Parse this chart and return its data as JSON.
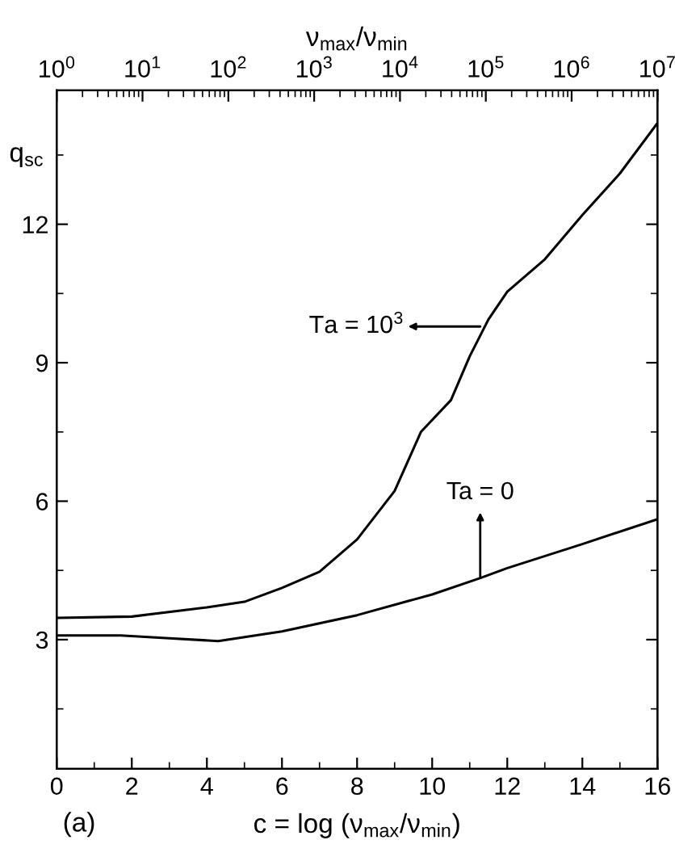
{
  "chart_data": {
    "type": "line",
    "xlabel": "c = log (ν$_{max}$/ν$_{min}$)",
    "ylabel": "q$_{sc}$",
    "x2label": "ν$_{max}$/ν$_{min}$",
    "series": [
      {
        "color": "#000000",
        "x": [
          0,
          2,
          4,
          5,
          6,
          7,
          8,
          9,
          9.7,
          10.5,
          11,
          11.5,
          12,
          13,
          14,
          15,
          16
        ],
        "values": [
          3.47,
          3.5,
          3.7,
          3.82,
          4.12,
          4.47,
          5.17,
          6.22,
          7.5,
          8.19,
          9.14,
          9.94,
          10.54,
          11.24,
          12.2,
          13.1,
          14.19
        ]
      },
      {
        "color": "#000000",
        "x": [
          0,
          1.7,
          3,
          4.3,
          6,
          8,
          10,
          11.3,
          12,
          14,
          16
        ],
        "values": [
          3.09,
          3.09,
          3.03,
          2.97,
          3.18,
          3.53,
          3.98,
          4.34,
          4.55,
          5.07,
          5.61
        ]
      }
    ],
    "xlim": [
      0,
      16
    ],
    "xticks": [
      0,
      2,
      4,
      6,
      8,
      10,
      12,
      14,
      16
    ],
    "ylim": [
      0.2,
      14.9
    ],
    "yticks": [
      3,
      6,
      9,
      12
    ],
    "x2lim": [
      1,
      10000000
    ],
    "log": "x2",
    "x2ticks": [
      {
        "value": 1,
        "label": "10$^{0}$"
      },
      {
        "value": 10,
        "label": "10$^{1}$"
      },
      {
        "value": 100,
        "label": "10$^{2}$"
      },
      {
        "value": 1000,
        "label": "10$^{3}$"
      },
      {
        "value": 10000,
        "label": "10$^{4}$"
      },
      {
        "value": 100000,
        "label": "10$^{5}$"
      },
      {
        "value": 1000000,
        "label": "10$^{6}$"
      },
      {
        "value": 10000000,
        "label": "10$^{7}$"
      }
    ],
    "annotations": [
      "Ta = 10$^{3}$",
      "Ta = 0",
      "(a)"
    ],
    "grid": false,
    "legend": false,
    "marker": "none",
    "line_style": "solid"
  }
}
